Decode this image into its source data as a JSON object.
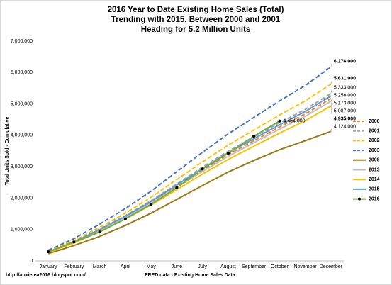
{
  "chart_data": {
    "type": "line",
    "title": [
      "2016 Year to Date Existing Home Sales (Total)",
      "Trending with 2015, Between 2000 and 2001",
      "Heading for 5.2 Million Units"
    ],
    "y_label": "Total Units Sold - Cumulative",
    "x_label": "FRED data - Existing Home Sales Data",
    "source": "http://anxietea2016.blogspot.com/",
    "categories": [
      "January",
      "February",
      "March",
      "April",
      "May",
      "June",
      "July",
      "August",
      "September",
      "October",
      "November",
      "December"
    ],
    "ylim": [
      0,
      7000000
    ],
    "yticks": [
      {
        "value": 0,
        "label": "0"
      },
      {
        "value": 1000000,
        "label": "1,000,000"
      },
      {
        "value": 2000000,
        "label": "2,000,000"
      },
      {
        "value": 3000000,
        "label": "3,000,000"
      },
      {
        "value": 4000000,
        "label": "4,000,000"
      },
      {
        "value": 5000000,
        "label": "5,000,000"
      },
      {
        "value": 6000000,
        "label": "6,000,000"
      },
      {
        "value": 7000000,
        "label": "7,000,000"
      }
    ],
    "grid": false,
    "legend": "right",
    "series": [
      {
        "name": "2000",
        "color": "#ED7D31",
        "dash": true,
        "label_color": "#ED7D31",
        "values": [
          285000,
          595000,
          983000,
          1397000,
          1862000,
          2380000,
          2897000,
          3388000,
          3828000,
          4268000,
          4682000,
          5173000
        ],
        "value_labels": [
          null,
          null,
          null,
          null,
          null,
          null,
          null,
          null,
          null,
          null,
          null,
          "5,173,000"
        ]
      },
      {
        "name": "2001",
        "color": "#A5A5A5",
        "dash": true,
        "label_color": "#808080",
        "values": [
          293000,
          613000,
          1013000,
          1440000,
          1920000,
          2453000,
          2986000,
          3493000,
          3946000,
          4400000,
          4826000,
          5333000
        ],
        "value_labels": [
          null,
          null,
          null,
          null,
          null,
          null,
          null,
          null,
          null,
          null,
          null,
          "5,333,000"
        ]
      },
      {
        "name": "2002",
        "color": "#FFC000",
        "dash": true,
        "label_color": "#000000",
        "values": [
          310000,
          648000,
          1070000,
          1520000,
          2027000,
          2590000,
          3153000,
          3688000,
          4167000,
          4646000,
          5096000,
          5631000
        ],
        "value_labels": [
          null,
          null,
          null,
          null,
          null,
          null,
          null,
          null,
          null,
          null,
          null,
          "5,631,000"
        ]
      },
      {
        "name": "2003",
        "color": "#4472C4",
        "dash": true,
        "label_color": "#000000",
        "values": [
          340000,
          710000,
          1173000,
          1668000,
          2223000,
          2841000,
          3459000,
          4045000,
          4570000,
          5095000,
          5589000,
          6176000
        ],
        "value_labels": [
          null,
          null,
          null,
          null,
          null,
          null,
          null,
          null,
          null,
          null,
          null,
          "6,176,000"
        ]
      },
      {
        "name": "2008",
        "color": "#9C7A12",
        "dash": false,
        "label_color": "#595959",
        "values": [
          230000,
          490000,
          780000,
          1130000,
          1520000,
          1960000,
          2400000,
          2830000,
          3200000,
          3540000,
          3830000,
          4124000
        ],
        "value_labels": [
          null,
          null,
          null,
          null,
          null,
          null,
          null,
          null,
          null,
          null,
          null,
          "4,124,000"
        ]
      },
      {
        "name": "2013",
        "color": "#BFBFBF",
        "dash": false,
        "label_color": "#808080",
        "values": [
          280000,
          585000,
          967000,
          1373000,
          1831000,
          2340000,
          2849000,
          3332000,
          3764000,
          4197000,
          4604000,
          5087000
        ],
        "value_labels": [
          null,
          null,
          null,
          null,
          null,
          null,
          null,
          null,
          null,
          null,
          null,
          "5,087,000"
        ]
      },
      {
        "name": "2014",
        "color": "#FFC000",
        "dash": false,
        "label_color": "#000000",
        "values": [
          271000,
          568000,
          938000,
          1332000,
          1777000,
          2270000,
          2764000,
          3232000,
          3652000,
          4071000,
          4466000,
          4935000
        ],
        "value_labels": [
          null,
          null,
          null,
          null,
          null,
          null,
          null,
          null,
          null,
          null,
          null,
          "4,935,000"
        ]
      },
      {
        "name": "2015",
        "color": "#5B9BD5",
        "dash": false,
        "label_color": "#2E75B6",
        "values": [
          289000,
          604000,
          999000,
          1419000,
          1892000,
          2418000,
          2943000,
          3443000,
          3889000,
          4336000,
          4757000,
          5256000
        ],
        "value_labels": [
          null,
          null,
          null,
          null,
          null,
          null,
          null,
          null,
          null,
          null,
          null,
          "5,256,000"
        ]
      },
      {
        "name": "2016",
        "color": "#70AD47",
        "dash": false,
        "markers": true,
        "label_color": "#404040",
        "values": [
          290000,
          600000,
          920000,
          1340000,
          1800000,
          2330000,
          2930000,
          3430000,
          3970000,
          4454000,
          null,
          null
        ],
        "value_labels": [
          null,
          null,
          null,
          null,
          null,
          null,
          null,
          null,
          null,
          "4,454,000",
          null,
          null
        ]
      }
    ]
  }
}
